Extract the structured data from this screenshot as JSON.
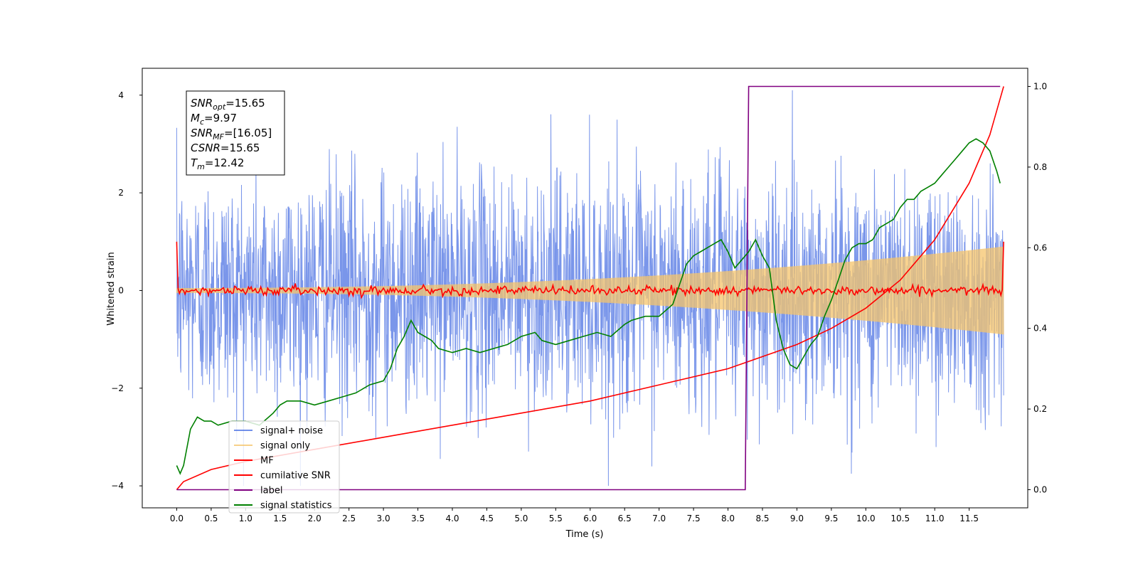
{
  "chart_data": {
    "type": "line",
    "xlabel": "Time (s)",
    "ylabel": "Whitened strain",
    "xlim": [
      -0.5,
      12.35
    ],
    "ylim": [
      -4.45,
      4.55
    ],
    "y2lim": [
      -0.045,
      1.045
    ],
    "xticks": [
      "0.0",
      "0.5",
      "1.0",
      "1.5",
      "2.0",
      "2.5",
      "3.0",
      "3.5",
      "4.0",
      "4.5",
      "5.0",
      "5.5",
      "6.0",
      "6.5",
      "7.0",
      "7.5",
      "8.0",
      "8.5",
      "9.0",
      "9.5",
      "10.0",
      "10.5",
      "11.0",
      "11.5"
    ],
    "yticks": [
      "4",
      "2",
      "0",
      "-2",
      "-4"
    ],
    "y2ticks": [
      "1.0",
      "0.8",
      "0.6",
      "0.4",
      "0.2",
      "0.0"
    ],
    "grid": false,
    "legend_position": "lower-left",
    "legend": [
      "signal+ noise",
      "signal only",
      "MF",
      "cumilative SNR",
      "label",
      "signal statistics"
    ],
    "annotation": {
      "lines": [
        {
          "base": "SNR",
          "sub": "opt",
          "value": "=15.65"
        },
        {
          "base": "M",
          "sub": "c",
          "value": "=9.97"
        },
        {
          "base": "SNR",
          "sub": "MF",
          "value": "=[16.05]"
        },
        {
          "base": "CSNR",
          "sub": "",
          "value": "=15.65"
        },
        {
          "base": "T",
          "sub": "m",
          "value": "=12.42"
        }
      ]
    },
    "series": [
      {
        "name": "signal+ noise",
        "axis": "left",
        "color": "#4169e1",
        "style": "noise",
        "x_range": [
          0,
          12.0
        ],
        "spread": 1.2
      },
      {
        "name": "signal only",
        "axis": "left",
        "color": "#f5c46b",
        "style": "chirp",
        "x_range": [
          0,
          12.0
        ],
        "amplitude_start": 0.05,
        "amplitude_end": 0.9
      },
      {
        "name": "MF",
        "axis": "left",
        "color": "#ff0000",
        "x": [
          0.0,
          0.05,
          0.1,
          0.2,
          1.0,
          2.0,
          3.0,
          4.0,
          5.0,
          6.0,
          7.0,
          8.0,
          9.0,
          10.0,
          11.0,
          11.9,
          11.95,
          12.0
        ],
        "values": [
          1.0,
          0.0,
          -0.05,
          0.0,
          0.0,
          0.0,
          0.0,
          0.0,
          0.0,
          0.0,
          0.0,
          0.0,
          0.0,
          0.0,
          0.0,
          0.0,
          0.1,
          1.0
        ]
      },
      {
        "name": "cumilative SNR",
        "axis": "right",
        "color": "#ff0000",
        "x": [
          0.0,
          0.1,
          0.5,
          1.0,
          2.0,
          3.0,
          4.0,
          5.0,
          6.0,
          7.0,
          8.0,
          8.5,
          9.0,
          9.5,
          10.0,
          10.5,
          11.0,
          11.5,
          11.8,
          12.0
        ],
        "values": [
          0.0,
          0.02,
          0.05,
          0.07,
          0.1,
          0.13,
          0.16,
          0.19,
          0.22,
          0.26,
          0.3,
          0.33,
          0.36,
          0.4,
          0.45,
          0.52,
          0.62,
          0.76,
          0.88,
          1.0
        ]
      },
      {
        "name": "label",
        "axis": "right",
        "color": "#800080",
        "x": [
          0.0,
          8.25,
          8.3,
          11.95
        ],
        "values": [
          0.0,
          0.0,
          1.0,
          1.0
        ]
      },
      {
        "name": "signal statistics",
        "axis": "right",
        "color": "#008000",
        "x": [
          0.0,
          0.05,
          0.1,
          0.2,
          0.3,
          0.4,
          0.5,
          0.6,
          0.8,
          1.0,
          1.2,
          1.4,
          1.5,
          1.6,
          1.8,
          2.0,
          2.2,
          2.4,
          2.6,
          2.8,
          3.0,
          3.1,
          3.2,
          3.3,
          3.4,
          3.5,
          3.6,
          3.7,
          3.8,
          4.0,
          4.2,
          4.4,
          4.6,
          4.8,
          5.0,
          5.2,
          5.3,
          5.5,
          5.7,
          5.9,
          6.1,
          6.3,
          6.5,
          6.6,
          6.8,
          7.0,
          7.2,
          7.4,
          7.5,
          7.6,
          7.7,
          7.8,
          7.9,
          8.0,
          8.1,
          8.2,
          8.3,
          8.4,
          8.5,
          8.6,
          8.7,
          8.8,
          8.9,
          9.0,
          9.1,
          9.2,
          9.3,
          9.4,
          9.5,
          9.6,
          9.7,
          9.8,
          9.9,
          10.0,
          10.1,
          10.2,
          10.3,
          10.4,
          10.5,
          10.6,
          10.7,
          10.8,
          10.9,
          11.0,
          11.1,
          11.2,
          11.3,
          11.4,
          11.5,
          11.6,
          11.7,
          11.8,
          11.9,
          11.95
        ],
        "values": [
          0.06,
          0.04,
          0.06,
          0.15,
          0.18,
          0.17,
          0.17,
          0.16,
          0.17,
          0.17,
          0.16,
          0.19,
          0.21,
          0.22,
          0.22,
          0.21,
          0.22,
          0.23,
          0.24,
          0.26,
          0.27,
          0.3,
          0.35,
          0.38,
          0.42,
          0.39,
          0.38,
          0.37,
          0.35,
          0.34,
          0.35,
          0.34,
          0.35,
          0.36,
          0.38,
          0.39,
          0.37,
          0.36,
          0.37,
          0.38,
          0.39,
          0.38,
          0.41,
          0.42,
          0.43,
          0.43,
          0.46,
          0.56,
          0.58,
          0.59,
          0.6,
          0.61,
          0.62,
          0.59,
          0.55,
          0.57,
          0.59,
          0.62,
          0.58,
          0.55,
          0.42,
          0.35,
          0.31,
          0.3,
          0.33,
          0.36,
          0.38,
          0.43,
          0.47,
          0.52,
          0.57,
          0.6,
          0.61,
          0.61,
          0.62,
          0.65,
          0.66,
          0.67,
          0.7,
          0.72,
          0.72,
          0.74,
          0.75,
          0.76,
          0.78,
          0.8,
          0.82,
          0.84,
          0.86,
          0.87,
          0.86,
          0.84,
          0.79,
          0.76
        ]
      }
    ]
  }
}
